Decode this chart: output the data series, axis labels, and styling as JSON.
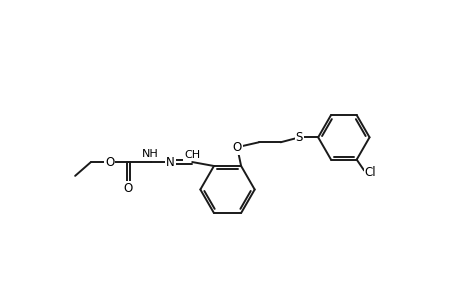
{
  "bg_color": "#ffffff",
  "line_color": "#1a1a1a",
  "line_width": 1.4,
  "figsize": [
    4.6,
    3.0
  ],
  "dpi": 100,
  "xlim": [
    0.0,
    9.2
  ],
  "ylim": [
    1.2,
    5.5
  ]
}
